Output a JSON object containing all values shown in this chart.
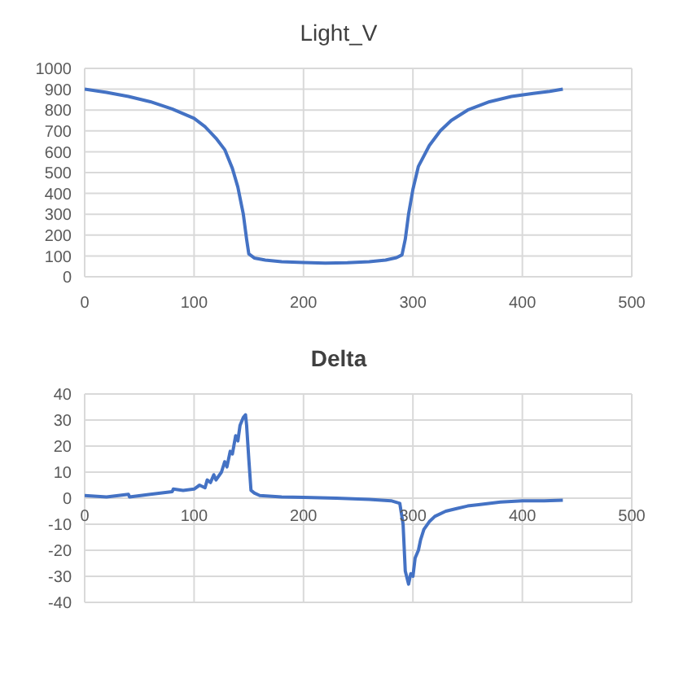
{
  "chart_data": [
    {
      "type": "line",
      "title": "Light_V",
      "color": "#4472c4",
      "grid": true,
      "xlim": [
        0,
        500
      ],
      "xticks": [
        0,
        100,
        200,
        300,
        400,
        500
      ],
      "ylim": [
        0,
        1000
      ],
      "yticks": [
        0,
        100,
        200,
        300,
        400,
        500,
        600,
        700,
        800,
        900,
        1000
      ],
      "x": [
        0,
        20,
        40,
        60,
        80,
        100,
        110,
        120,
        128,
        135,
        140,
        145,
        148,
        150,
        155,
        165,
        180,
        200,
        220,
        240,
        260,
        275,
        285,
        290,
        293,
        296,
        300,
        305,
        315,
        325,
        335,
        350,
        370,
        390,
        410,
        425,
        437
      ],
      "values": [
        900,
        885,
        865,
        840,
        805,
        760,
        720,
        665,
        610,
        520,
        430,
        300,
        180,
        110,
        90,
        80,
        72,
        68,
        65,
        67,
        72,
        80,
        92,
        105,
        180,
        300,
        420,
        530,
        630,
        700,
        750,
        800,
        840,
        865,
        880,
        890,
        900
      ]
    },
    {
      "type": "line",
      "title": "Delta",
      "color": "#4472c4",
      "grid": true,
      "xlim": [
        0,
        500
      ],
      "xticks": [
        0,
        100,
        200,
        300,
        400,
        500
      ],
      "ylim": [
        -40,
        40
      ],
      "yticks": [
        -40,
        -30,
        -20,
        -10,
        0,
        10,
        20,
        30,
        40
      ],
      "x": [
        0,
        20,
        40,
        41,
        60,
        80,
        81,
        90,
        100,
        105,
        110,
        112,
        115,
        118,
        120,
        125,
        128,
        130,
        133,
        135,
        138,
        140,
        142,
        145,
        147,
        148,
        150,
        152,
        155,
        160,
        180,
        200,
        230,
        260,
        280,
        288,
        291,
        293,
        296,
        298,
        300,
        302,
        305,
        307,
        310,
        315,
        320,
        330,
        340,
        350,
        360,
        380,
        400,
        420,
        437
      ],
      "values": [
        1,
        0.5,
        1.5,
        0.5,
        1.5,
        2.5,
        3.5,
        3,
        3.5,
        5,
        4,
        7,
        6,
        9,
        7,
        10,
        14,
        12,
        18,
        17,
        24,
        22,
        28,
        31,
        32,
        28,
        15,
        3,
        2,
        1,
        0.5,
        0.3,
        0,
        -0.5,
        -1,
        -2,
        -10,
        -28,
        -33,
        -29,
        -30,
        -23,
        -20,
        -16,
        -12,
        -9,
        -7,
        -5,
        -4,
        -3,
        -2.5,
        -1.5,
        -1,
        -1,
        -0.8
      ]
    }
  ]
}
